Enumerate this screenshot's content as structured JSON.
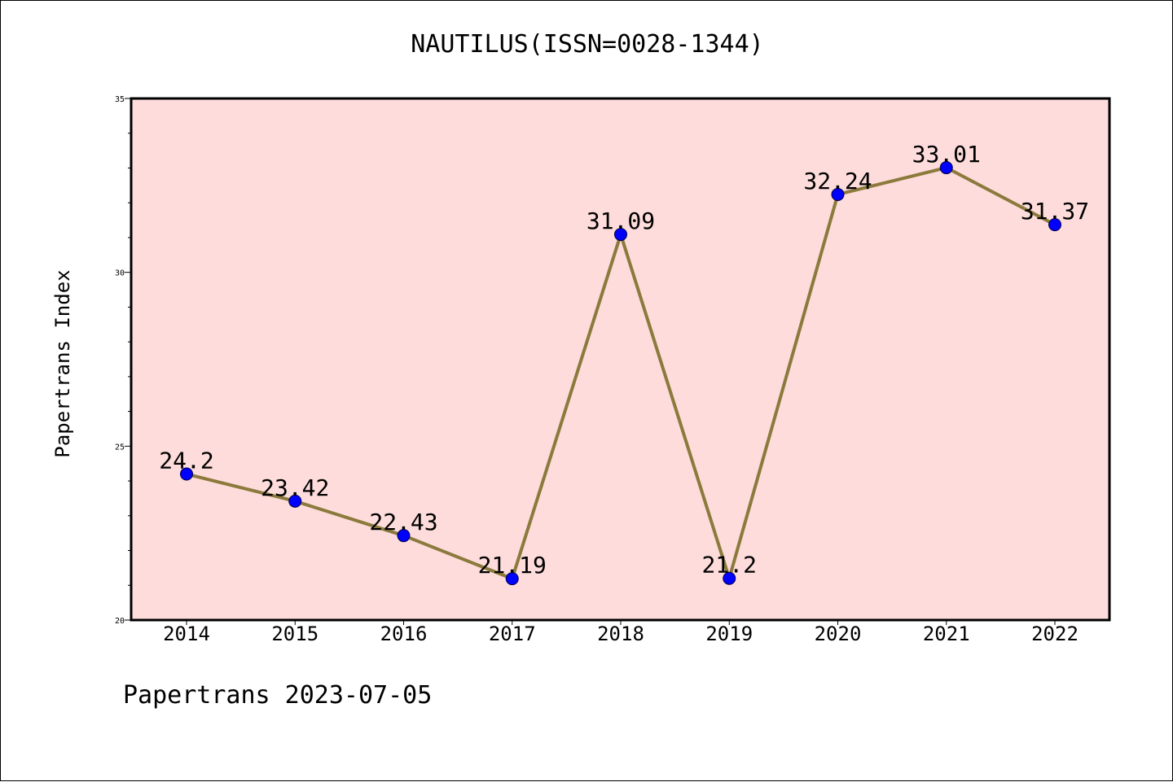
{
  "page": {
    "title": "NAUTILUS(ISSN=0028-1344)",
    "footer": "Papertrans 2023-07-05"
  },
  "chart_data": {
    "type": "line",
    "title": "NAUTILUS(ISSN=0028-1344)",
    "xlabel": "",
    "ylabel": "Papertrans Index",
    "categories": [
      "2014",
      "2015",
      "2016",
      "2017",
      "2018",
      "2019",
      "2020",
      "2021",
      "2022"
    ],
    "values": [
      24.2,
      23.42,
      22.43,
      21.19,
      31.09,
      21.2,
      32.24,
      33.01,
      31.37
    ],
    "value_labels": [
      "24.2",
      "23.42",
      "22.43",
      "21.19",
      "31.09",
      "21.2",
      "32.24",
      "33.01",
      "31.37"
    ],
    "ylim": [
      20,
      35
    ],
    "y_major_ticks": [
      20,
      25,
      30,
      35
    ],
    "y_minor_step": 1,
    "grid": false,
    "legend": "none",
    "colors": {
      "plot_background": "#fddcdb",
      "line": "#8b7a3c",
      "marker": "#0000ff",
      "axis": "#000000"
    }
  }
}
